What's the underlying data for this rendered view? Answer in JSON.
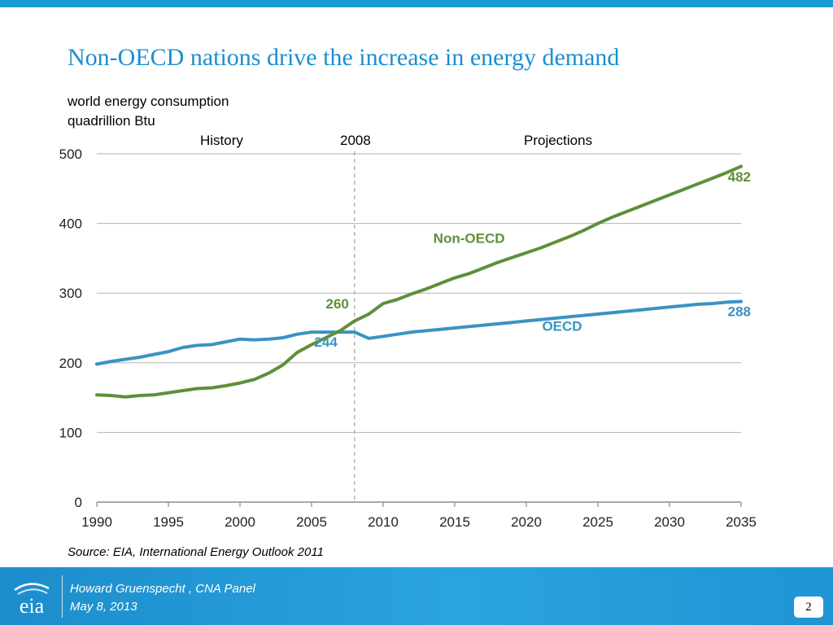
{
  "slide": {
    "title": "Non-OECD nations drive the increase in energy demand",
    "unit_line1": "world energy consumption",
    "unit_line2": "quadrillion Btu",
    "period_history": "History",
    "period_divider": "2008",
    "period_projections": "Projections",
    "source": "Source:  EIA, International Energy Outlook 2011",
    "footer_line1": "Howard Gruenspecht ,  CNA Panel",
    "footer_line2": "May 8, 2013",
    "page_number": "2",
    "logo_text": "eia"
  },
  "colors": {
    "title": "#1a8fd0",
    "oecd": "#3a93c2",
    "non_oecd": "#5e8f3a",
    "grid": "#b3b3b3",
    "footer": "#1c8dcc"
  },
  "chart_data": {
    "type": "line",
    "x": [
      1990,
      1991,
      1992,
      1993,
      1994,
      1995,
      1996,
      1997,
      1998,
      1999,
      2000,
      2001,
      2002,
      2003,
      2004,
      2005,
      2006,
      2007,
      2008,
      2009,
      2010,
      2011,
      2012,
      2013,
      2014,
      2015,
      2016,
      2017,
      2018,
      2019,
      2020,
      2021,
      2022,
      2023,
      2024,
      2025,
      2026,
      2027,
      2028,
      2029,
      2030,
      2031,
      2032,
      2033,
      2034,
      2035
    ],
    "series": [
      {
        "name": "OECD",
        "color": "#3a93c2",
        "values": [
          198,
          202,
          205,
          208,
          212,
          216,
          222,
          225,
          226,
          230,
          234,
          233,
          234,
          236,
          241,
          244,
          244,
          244,
          244,
          235,
          238,
          241,
          244,
          246,
          248,
          250,
          252,
          254,
          256,
          258,
          260,
          262,
          264,
          266,
          268,
          270,
          272,
          274,
          276,
          278,
          280,
          282,
          284,
          285,
          287,
          288
        ]
      },
      {
        "name": "Non-OECD",
        "color": "#5e8f3a",
        "values": [
          154,
          153,
          151,
          153,
          154,
          157,
          160,
          163,
          164,
          167,
          171,
          176,
          185,
          197,
          215,
          226,
          236,
          246,
          260,
          270,
          285,
          291,
          299,
          306,
          314,
          322,
          328,
          336,
          344,
          351,
          358,
          365,
          373,
          381,
          390,
          400,
          409,
          417,
          425,
          433,
          441,
          449,
          457,
          465,
          473,
          482
        ]
      }
    ],
    "annotations": [
      {
        "label": "Non-OECD",
        "series": "Non-OECD",
        "x": 2016,
        "y": 372
      },
      {
        "label": "OECD",
        "series": "OECD",
        "x": 2022.5,
        "y": 246
      },
      {
        "label": "260",
        "series": "Non-OECD",
        "x": 2006.8,
        "y": 278
      },
      {
        "label": "244",
        "series": "OECD",
        "x": 2006,
        "y": 223
      },
      {
        "label": "482",
        "series": "Non-OECD",
        "x": 2035,
        "y": 460
      },
      {
        "label": "288",
        "series": "OECD",
        "x": 2035,
        "y": 267
      }
    ],
    "vline": {
      "x": 2008,
      "style": "dashed"
    },
    "xticks": [
      1990,
      1995,
      2000,
      2005,
      2010,
      2015,
      2020,
      2025,
      2030,
      2035
    ],
    "yticks": [
      0,
      100,
      200,
      300,
      400,
      500
    ],
    "xlim": [
      1990,
      2035
    ],
    "ylim": [
      0,
      500
    ],
    "grid": "horizontal",
    "title": "",
    "xlabel": "",
    "ylabel": ""
  }
}
